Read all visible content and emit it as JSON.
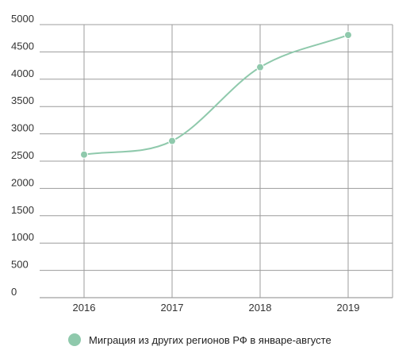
{
  "chart_data": {
    "type": "line",
    "categories": [
      "2016",
      "2017",
      "2018",
      "2019"
    ],
    "series": [
      {
        "name": "Миграция из других регионов РФ в январе-августе",
        "values": [
          2620,
          2870,
          4220,
          4810
        ],
        "color": "#8fc9ac"
      }
    ],
    "ylim": [
      0,
      5000
    ],
    "yticks": [
      0,
      500,
      1000,
      1500,
      2000,
      2500,
      3000,
      3500,
      4000,
      4500,
      5000
    ],
    "grid": true,
    "legend_position": "bottom",
    "title": "",
    "xlabel": "",
    "ylabel": ""
  }
}
